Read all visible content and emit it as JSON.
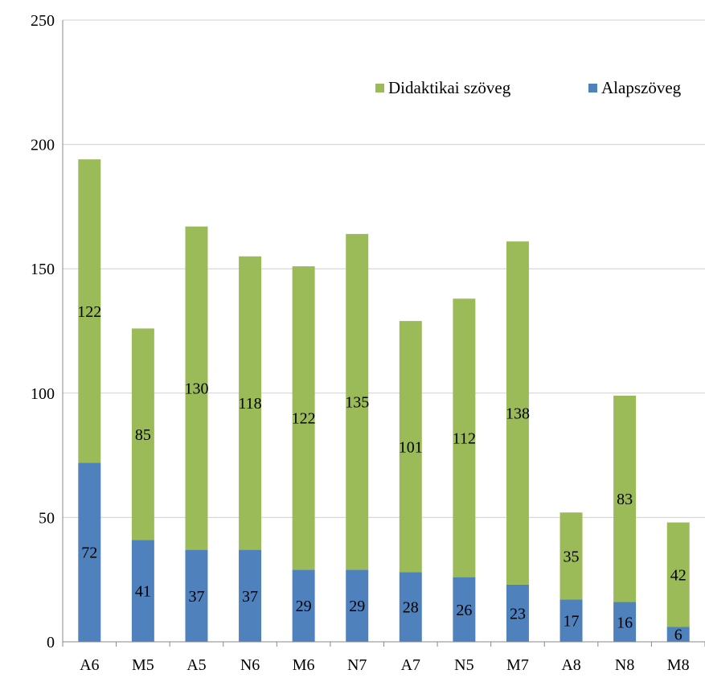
{
  "chart_data": {
    "type": "bar",
    "stacked": true,
    "categories": [
      "A6",
      "M5",
      "A5",
      "N6",
      "M6",
      "N7",
      "A7",
      "N5",
      "M7",
      "A8",
      "N8",
      "M8"
    ],
    "series": [
      {
        "name": "Alapszöveg",
        "color": "#4f81bd",
        "values": [
          72,
          41,
          37,
          37,
          29,
          29,
          28,
          26,
          23,
          17,
          16,
          6
        ]
      },
      {
        "name": "Didaktikai szöveg",
        "color": "#9bbb59",
        "values": [
          122,
          85,
          130,
          118,
          122,
          135,
          101,
          112,
          138,
          35,
          83,
          42
        ]
      }
    ],
    "ylim": [
      0,
      250
    ],
    "yticks": [
      "0",
      "50",
      "100",
      "150",
      "200",
      "250"
    ],
    "grid": true,
    "legend_position": "top-right",
    "legend_order": [
      "Didaktikai szöveg",
      "Alapszöveg"
    ]
  }
}
